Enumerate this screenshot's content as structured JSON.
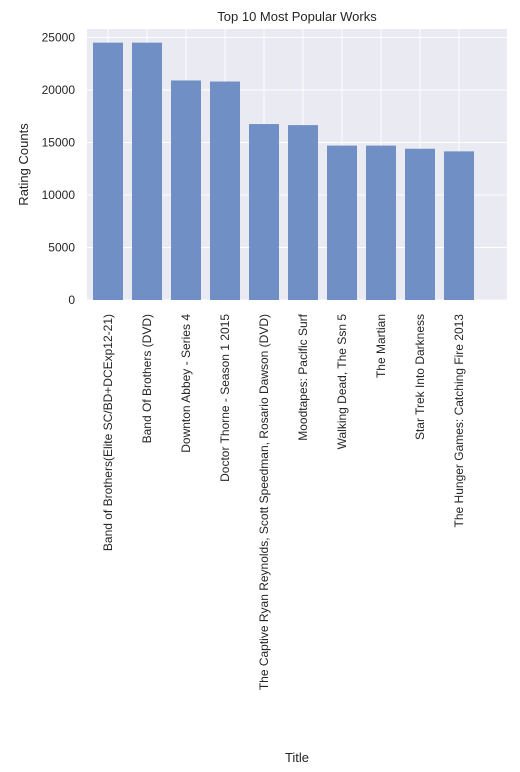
{
  "chart_data": {
    "type": "bar",
    "title": "Top 10 Most Popular Works",
    "xlabel": "Title",
    "ylabel": "Rating Counts",
    "categories": [
      "Band of Brothers(Elite SC/BD+DCExp12-21)",
      "Band Of Brothers (DVD)",
      "Downton Abbey - Series 4",
      "Doctor Thorne - Season 1 2015",
      "The Captive Ryan Reynolds, Scott Speedman, Rosario Dawson (DVD)",
      "Moodtapes: Pacific Surf",
      "Walking Dead, The Ssn 5",
      "The Martian",
      "Star Trek Into Darkness",
      "The Hunger Games: Catching Fire 2013"
    ],
    "values": [
      24500,
      24500,
      20900,
      20800,
      16750,
      16650,
      14700,
      14700,
      14400,
      14150
    ],
    "ylim": [
      0,
      25800
    ],
    "yticks": [
      0,
      5000,
      10000,
      15000,
      20000,
      25000
    ],
    "grid": true,
    "colors": {
      "bar": "#6f8fc5",
      "plot_background": "#eaeaf2",
      "grid": "#ffffff",
      "text": "#262626"
    }
  }
}
